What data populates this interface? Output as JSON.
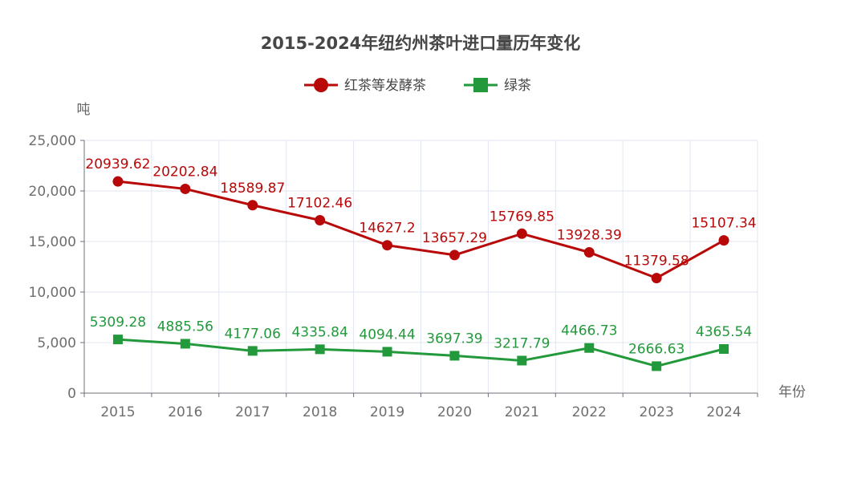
{
  "chart_data": {
    "type": "line",
    "title": "2015-2024年纽约州茶叶进口量历年变化",
    "xlabel": "年份",
    "ylabel": "吨",
    "categories": [
      "2015",
      "2016",
      "2017",
      "2018",
      "2019",
      "2020",
      "2021",
      "2022",
      "2023",
      "2024"
    ],
    "ylim": [
      0,
      25000
    ],
    "yticks": [
      0,
      5000,
      10000,
      15000,
      20000,
      25000
    ],
    "ytick_labels": [
      "0",
      "5,000",
      "10,000",
      "15,000",
      "20,000",
      "25,000"
    ],
    "grid": true,
    "legend_position": "top-center",
    "series": [
      {
        "name": "红茶等发酵茶",
        "color": "#b80808",
        "marker": "circle",
        "values": [
          20939.62,
          20202.84,
          18589.87,
          17102.46,
          14627.2,
          13657.29,
          15769.85,
          13928.39,
          11379.58,
          15107.34
        ],
        "labels": [
          "20939.62",
          "20202.84",
          "18589.87",
          "17102.46",
          "14627.2",
          "13657.29",
          "15769.85",
          "13928.39",
          "11379.58",
          "15107.34"
        ]
      },
      {
        "name": "绿茶",
        "color": "#22993b",
        "marker": "square",
        "values": [
          5309.28,
          4885.56,
          4177.06,
          4335.84,
          4094.44,
          3697.39,
          3217.79,
          4466.73,
          2666.63,
          4365.54
        ],
        "labels": [
          "5309.28",
          "4885.56",
          "4177.06",
          "4335.84",
          "4094.44",
          "3697.39",
          "3217.79",
          "4466.73",
          "2666.63",
          "4365.54"
        ]
      }
    ]
  }
}
